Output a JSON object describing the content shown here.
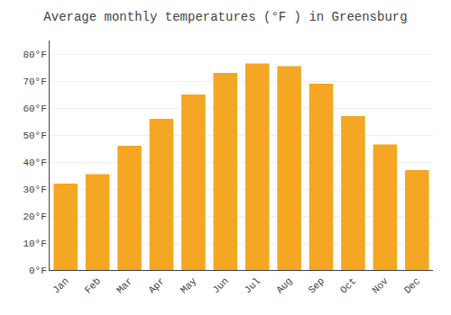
{
  "chart_data": {
    "type": "bar",
    "title": "Average monthly temperatures (°F ) in Greensburg",
    "categories": [
      "Jan",
      "Feb",
      "Mar",
      "Apr",
      "May",
      "Jun",
      "Jul",
      "Aug",
      "Sep",
      "Oct",
      "Nov",
      "Dec"
    ],
    "values": [
      32,
      35.5,
      46,
      56,
      65,
      73,
      76.5,
      75.5,
      69,
      57,
      46.5,
      37
    ],
    "color": "#F5A623",
    "ylim": [
      0,
      85
    ],
    "yticks": [
      {
        "value": 0,
        "label": "0°F"
      },
      {
        "value": 10,
        "label": "10°F"
      },
      {
        "value": 20,
        "label": "20°F"
      },
      {
        "value": 30,
        "label": "30°F"
      },
      {
        "value": 40,
        "label": "40°F"
      },
      {
        "value": 50,
        "label": "50°F"
      },
      {
        "value": 60,
        "label": "60°F"
      },
      {
        "value": 70,
        "label": "70°F"
      },
      {
        "value": 80,
        "label": "80°F"
      }
    ],
    "grid": true
  }
}
